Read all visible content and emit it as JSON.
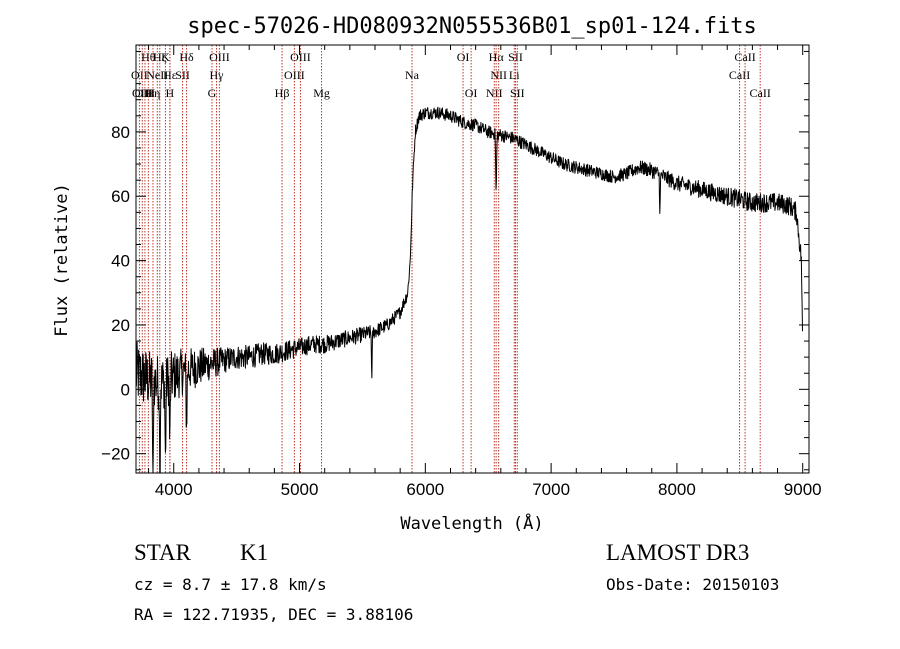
{
  "chart_data": {
    "type": "line",
    "title": "spec-57026-HD080932N055536B01_sp01-124.fits",
    "xlabel": "Wavelength (Å)",
    "ylabel": "Flux (relative)",
    "xlim": [
      3700,
      9050
    ],
    "ylim": [
      -26,
      107
    ],
    "x_ticks": [
      4000,
      5000,
      6000,
      7000,
      8000,
      9000
    ],
    "y_ticks": [
      -20,
      0,
      20,
      40,
      60,
      80
    ],
    "series": [
      {
        "name": "flux",
        "anchors": [
          [
            3700,
            5
          ],
          [
            3800,
            3
          ],
          [
            3900,
            2
          ],
          [
            4000,
            4
          ],
          [
            4100,
            6
          ],
          [
            4200,
            7
          ],
          [
            4300,
            8
          ],
          [
            4400,
            9
          ],
          [
            4500,
            10
          ],
          [
            4600,
            10
          ],
          [
            4700,
            11
          ],
          [
            4800,
            11
          ],
          [
            4900,
            12
          ],
          [
            5000,
            13
          ],
          [
            5100,
            14
          ],
          [
            5200,
            14
          ],
          [
            5300,
            15
          ],
          [
            5400,
            16
          ],
          [
            5500,
            17
          ],
          [
            5600,
            18
          ],
          [
            5700,
            20
          ],
          [
            5800,
            24
          ],
          [
            5860,
            30
          ],
          [
            5880,
            40
          ],
          [
            5900,
            65
          ],
          [
            5920,
            80
          ],
          [
            5950,
            85
          ],
          [
            6000,
            86
          ],
          [
            6100,
            86
          ],
          [
            6200,
            85
          ],
          [
            6300,
            83
          ],
          [
            6400,
            82
          ],
          [
            6500,
            80
          ],
          [
            6600,
            79
          ],
          [
            6700,
            78
          ],
          [
            6800,
            76
          ],
          [
            6900,
            74
          ],
          [
            7000,
            72
          ],
          [
            7100,
            70
          ],
          [
            7200,
            69
          ],
          [
            7300,
            68
          ],
          [
            7400,
            67
          ],
          [
            7500,
            66
          ],
          [
            7600,
            67
          ],
          [
            7700,
            69
          ],
          [
            7800,
            68
          ],
          [
            7900,
            66
          ],
          [
            8000,
            64
          ],
          [
            8100,
            63
          ],
          [
            8200,
            62
          ],
          [
            8300,
            61
          ],
          [
            8400,
            60
          ],
          [
            8500,
            59
          ],
          [
            8600,
            58
          ],
          [
            8700,
            58
          ],
          [
            8800,
            58
          ],
          [
            8900,
            57
          ],
          [
            8950,
            55
          ],
          [
            8990,
            40
          ],
          [
            9000,
            10
          ]
        ],
        "noise": [
          [
            3700,
            10
          ],
          [
            4000,
            8
          ],
          [
            4400,
            4
          ],
          [
            5000,
            3
          ],
          [
            5800,
            2
          ],
          [
            6500,
            2
          ],
          [
            7500,
            2
          ],
          [
            8500,
            3
          ],
          [
            9000,
            3
          ]
        ],
        "features": [
          {
            "x": 3835,
            "depth": 40,
            "width": 4
          },
          {
            "x": 3890,
            "depth": 40,
            "width": 4
          },
          {
            "x": 3934,
            "depth": 25,
            "width": 5
          },
          {
            "x": 3969,
            "depth": 20,
            "width": 5
          },
          {
            "x": 4102,
            "depth": 18,
            "width": 5
          },
          {
            "x": 5575,
            "depth": 15,
            "width": 4
          },
          {
            "x": 6563,
            "depth": 18,
            "width": 5
          },
          {
            "x": 7865,
            "depth": 11,
            "width": 4
          }
        ]
      }
    ],
    "line_ids": [
      {
        "x": 3727,
        "label": "OII",
        "row": 1
      },
      {
        "x": 3750,
        "label": "OIII",
        "row": 2
      },
      {
        "x": 3771,
        "label": "OIII",
        "row": 2
      },
      {
        "x": 3798,
        "label": "Hθ",
        "row": 0
      },
      {
        "x": 3835,
        "label": "Hη",
        "row": 2
      },
      {
        "x": 3869,
        "label": "NeII",
        "row": 1
      },
      {
        "x": 3889,
        "label": "Hζ",
        "row": 0
      },
      {
        "x": 3934,
        "label": "K",
        "row": 0
      },
      {
        "x": 3969,
        "label": "H",
        "row": 2
      },
      {
        "x": 3970,
        "label": "Hε",
        "row": 1
      },
      {
        "x": 4070,
        "label": "SII",
        "row": 1
      },
      {
        "x": 4102,
        "label": "Hδ",
        "row": 0
      },
      {
        "x": 4304,
        "label": "G",
        "row": 2
      },
      {
        "x": 4340,
        "label": "Hγ",
        "row": 1
      },
      {
        "x": 4363,
        "label": "OIII",
        "row": 0
      },
      {
        "x": 4861,
        "label": "Hβ",
        "row": 2
      },
      {
        "x": 4959,
        "label": "OIII",
        "row": 1
      },
      {
        "x": 5007,
        "label": "OIII",
        "row": 0
      },
      {
        "x": 5175,
        "label": "Mg",
        "row": 2
      },
      {
        "x": 5894,
        "label": "Na",
        "row": 1
      },
      {
        "x": 6300,
        "label": "OI",
        "row": 0
      },
      {
        "x": 6364,
        "label": "OI",
        "row": 2
      },
      {
        "x": 6548,
        "label": "NII",
        "row": 2
      },
      {
        "x": 6563,
        "label": "Hα",
        "row": 0
      },
      {
        "x": 6583,
        "label": "NII",
        "row": 1
      },
      {
        "x": 6707,
        "label": "Li",
        "row": 1
      },
      {
        "x": 6717,
        "label": "SII",
        "row": 0
      },
      {
        "x": 6731,
        "label": "SII",
        "row": 2
      },
      {
        "x": 8498,
        "label": "CaII",
        "row": 1
      },
      {
        "x": 8542,
        "label": "CaII",
        "row": 0
      },
      {
        "x": 8662,
        "label": "CaII",
        "row": 2
      }
    ]
  },
  "info": {
    "class": "STAR",
    "subclass": "K1",
    "survey": "LAMOST DR3",
    "cz": "cz = 8.7 ± 17.8 km/s",
    "obs_date": "Obs-Date: 20150103",
    "coords": "RA = 122.71935, DEC =   3.88106"
  },
  "colors": {
    "line_marker": "#c0392b",
    "spectrum": "#000000"
  }
}
